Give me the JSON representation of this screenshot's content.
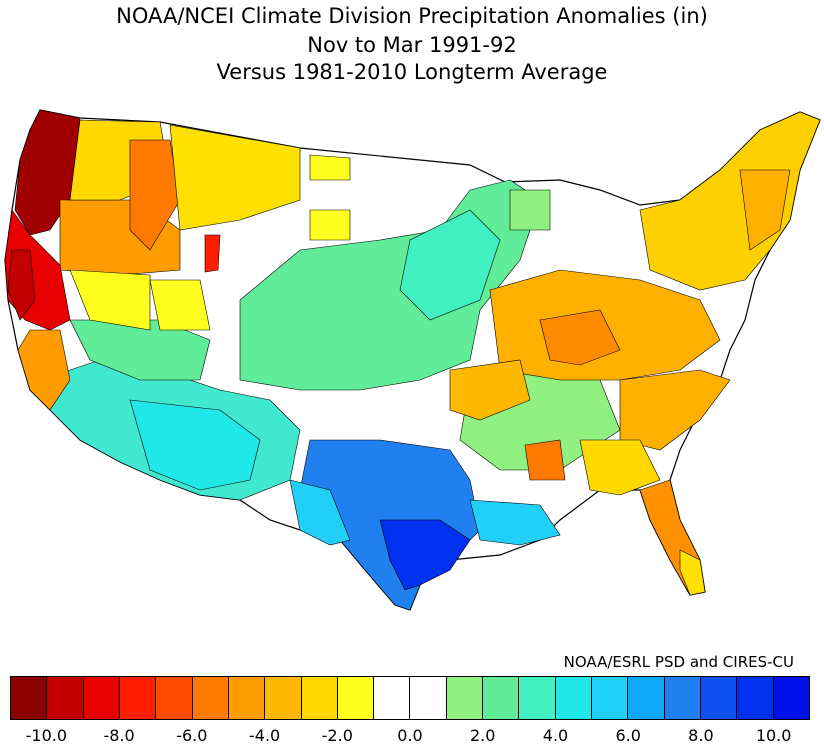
{
  "title": {
    "line1": "NOAA/NCEI Climate Division Precipitation Anomalies (in)",
    "line2": "Nov to Mar 1991-92",
    "line3": "Versus 1981-2010 Longterm Average"
  },
  "credit": "NOAA/ESRL PSD and CIRES-CU",
  "colorbar": {
    "colors": [
      "#8b0000",
      "#c30000",
      "#e80000",
      "#ff1e00",
      "#ff4c00",
      "#ff7a00",
      "#ff9c00",
      "#ffb800",
      "#ffd800",
      "#ffff20",
      "#ffffff",
      "#ffffff",
      "#90f080",
      "#60ec98",
      "#40f0c0",
      "#20e8e8",
      "#20d0f8",
      "#10a8f8",
      "#2080f0",
      "#1050f0",
      "#0030f0",
      "#0010e8"
    ],
    "tick_labels": [
      "-10.0",
      "-8.0",
      "-6.0",
      "-4.0",
      "-2.0",
      "0.0",
      "2.0",
      "4.0",
      "6.0",
      "8.0",
      "10.0"
    ]
  },
  "regions": [
    {
      "name": "Pacific Northwest coast",
      "anomaly": -10.0,
      "color": "#a00000"
    },
    {
      "name": "Northern California",
      "anomaly": -8.0,
      "color": "#e80000"
    },
    {
      "name": "Oregon interior",
      "anomaly": -5.0,
      "color": "#ff7a00"
    },
    {
      "name": "Idaho / Montana west",
      "anomaly": -3.0,
      "color": "#ffd800"
    },
    {
      "name": "Southern California",
      "anomaly": -4.0,
      "color": "#ffa000"
    },
    {
      "name": "Central Plains",
      "anomaly": 2.0,
      "color": "#60ec98"
    },
    {
      "name": "Texas",
      "anomaly": 7.0,
      "color": "#2080f0"
    },
    {
      "name": "Texas Gulf coast",
      "anomaly": 9.0,
      "color": "#0030f0"
    },
    {
      "name": "Southwest",
      "anomaly": 4.0,
      "color": "#40e8d0"
    },
    {
      "name": "Ohio Valley",
      "anomaly": -4.0,
      "color": "#ffa000"
    },
    {
      "name": "Northeast",
      "anomaly": -3.0,
      "color": "#ffc800"
    },
    {
      "name": "Southeast",
      "anomaly": -3.0,
      "color": "#ffb800"
    },
    {
      "name": "Florida",
      "anomaly": -4.0,
      "color": "#ff9000"
    }
  ]
}
